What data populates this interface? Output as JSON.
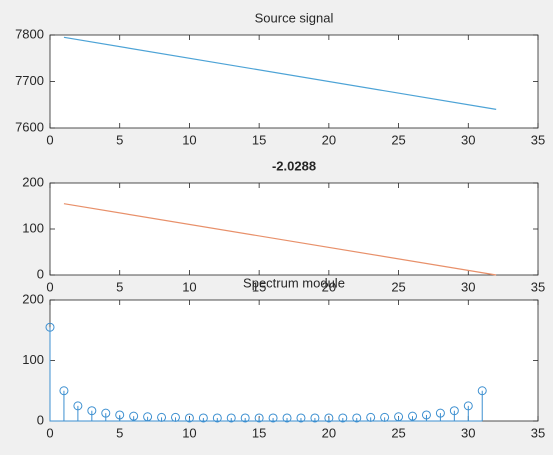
{
  "chart_data": [
    {
      "type": "line",
      "title": "Source signal",
      "x": [
        1,
        32
      ],
      "values": [
        7795,
        7640
      ],
      "color": "#4da3d6",
      "xlim": [
        0,
        35
      ],
      "xticks": [
        0,
        5,
        10,
        15,
        20,
        25,
        30,
        35
      ],
      "ylim": [
        7600,
        7800
      ],
      "yticks": [
        7600,
        7700,
        7800
      ]
    },
    {
      "type": "line",
      "title": "-2.0288",
      "x": [
        1,
        32
      ],
      "values": [
        155,
        0
      ],
      "color": "#e8906a",
      "xlim": [
        0,
        35
      ],
      "xticks": [
        0,
        5,
        10,
        15,
        20,
        25,
        30,
        35
      ],
      "ylim": [
        0,
        200
      ],
      "yticks": [
        0,
        100,
        200
      ]
    },
    {
      "type": "stem",
      "title": "Spectrum module",
      "x": [
        0,
        1,
        2,
        3,
        4,
        5,
        6,
        7,
        8,
        9,
        10,
        11,
        12,
        13,
        14,
        15,
        16,
        17,
        18,
        19,
        20,
        21,
        22,
        23,
        24,
        25,
        26,
        27,
        28,
        29,
        30,
        31
      ],
      "values": [
        155,
        50,
        25,
        17,
        13,
        10,
        8,
        7,
        6,
        6,
        5,
        5,
        5,
        5,
        5,
        5,
        5,
        5,
        5,
        5,
        5,
        5,
        5,
        6,
        6,
        7,
        8,
        10,
        13,
        17,
        25,
        50
      ],
      "color": "#3c8fd0",
      "xlim": [
        0,
        35
      ],
      "xticks": [
        0,
        5,
        10,
        15,
        20,
        25,
        30,
        35
      ],
      "ylim": [
        0,
        200
      ],
      "yticks": [
        0,
        100,
        200
      ]
    }
  ]
}
